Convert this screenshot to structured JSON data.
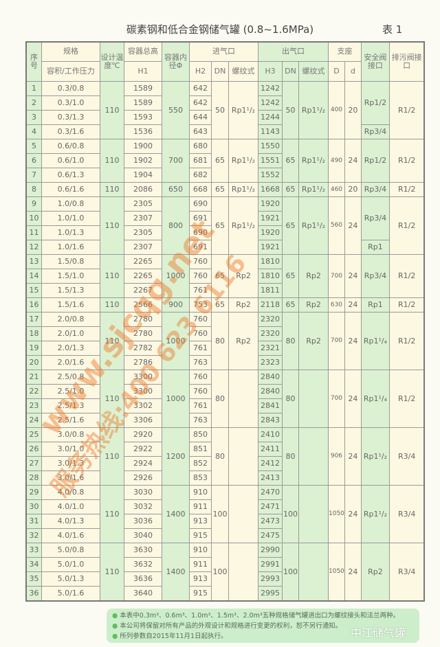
{
  "title": "碳素钢和低合金钢储气罐 (0.8~1.6MPa)",
  "table_number": "表  1",
  "headers": {
    "no": "序号",
    "spec": "规格",
    "spec_sub": "容积/工作压力",
    "temp": "设计温度℃",
    "h1_top": "容器总高",
    "h1": "H1",
    "dia": "容器内径Φ",
    "inlet": "进气口",
    "outlet": "出气口",
    "support": "支座",
    "safety": "安全阀接口",
    "drain": "排污阀接口",
    "h2": "H2",
    "dn": "DN",
    "thread": "螺纹式",
    "h3": "H3",
    "D": "D",
    "d": "d"
  },
  "groups": [
    {
      "temp": "110",
      "dia": "550",
      "dn_in": "50",
      "thread_in": "Rp1¹/₂",
      "dn_out": "50",
      "thread_out": "Rp1¹/₂",
      "D": "400",
      "d": "20",
      "drain": "R1/2",
      "safety": [
        {
          "label": "Rp1/2",
          "rows": 3
        },
        {
          "label": "Rp3/4",
          "rows": 1
        }
      ],
      "rows": [
        {
          "no": "1",
          "spec": "0.3/0.8",
          "h1": "1589",
          "h2": "642",
          "h3": "1242"
        },
        {
          "no": "2",
          "spec": "0.3/1.0",
          "h1": "1589",
          "h2": "642",
          "h3": "1242"
        },
        {
          "no": "3",
          "spec": "0.3/1.3",
          "h1": "1593",
          "h2": "644",
          "h3": "1244"
        },
        {
          "no": "4",
          "spec": "0.3/1.6",
          "h1": "1536",
          "h2": "643",
          "h3": "1143"
        }
      ]
    },
    {
      "temp": "110",
      "dia": "700",
      "dn_in": "65",
      "thread_in": "Rp1¹/₂",
      "dn_out": "65",
      "thread_out": "Rp1¹/₂",
      "D": "490",
      "d": "24",
      "drain": "R1/2",
      "safety": [
        {
          "label": "Rp1/2",
          "rows": 3
        }
      ],
      "rows": [
        {
          "no": "5",
          "spec": "0.6/0.8",
          "h1": "1900",
          "h2": "680",
          "h3": "1550"
        },
        {
          "no": "6",
          "spec": "0.6/1.0",
          "h1": "1902",
          "h2": "681",
          "h3": "1551"
        },
        {
          "no": "7",
          "spec": "0.6/1.3",
          "h1": "1904",
          "h2": "682",
          "h3": "1552"
        }
      ]
    },
    {
      "temp": "110",
      "dia": "650",
      "dn_in": "65",
      "thread_in": "Rp1¹/₂",
      "dn_out": "65",
      "thread_out": "Rp1¹/₂",
      "D": "460",
      "d": "20",
      "drain": "R1/2",
      "safety": [
        {
          "label": "Rp3/4",
          "rows": 1
        }
      ],
      "rows": [
        {
          "no": "8",
          "spec": "0.6/1.6",
          "h1": "2086",
          "h2": "668",
          "h3": "1668"
        }
      ]
    },
    {
      "temp": "110",
      "dia": "800",
      "dn_in": "65",
      "thread_in": "Rp1¹/₂",
      "dn_out": "65",
      "thread_out": "Rp1¹/₂",
      "D": "560",
      "d": "24",
      "drain": "R1/2",
      "safety": [
        {
          "label": "Rp3/4",
          "rows": 3
        },
        {
          "label": "Rp1",
          "rows": 1
        }
      ],
      "rows": [
        {
          "no": "9",
          "spec": "1.0/0.8",
          "h1": "2305",
          "h2": "690",
          "h3": "1920"
        },
        {
          "no": "10",
          "spec": "1.0/1.0",
          "h1": "2307",
          "h2": "691",
          "h3": "1921"
        },
        {
          "no": "11",
          "spec": "1.0/1.3",
          "h1": "2305",
          "h2": "690",
          "h3": "1920"
        },
        {
          "no": "12",
          "spec": "1.0/1.6",
          "h1": "2307",
          "h2": "691",
          "h3": "1921"
        }
      ]
    },
    {
      "temp": "110",
      "dia": "1000",
      "dn_in": "65",
      "thread_in": "Rp2",
      "dn_out": "65",
      "thread_out": "Rp2",
      "D": "700",
      "d": "24",
      "drain": "R1/2",
      "safety": [
        {
          "label": "Rp3/4",
          "rows": 3
        }
      ],
      "rows": [
        {
          "no": "13",
          "spec": "1.5/0.8",
          "h1": "2265",
          "h2": "760",
          "h3": "1810"
        },
        {
          "no": "14",
          "spec": "1.5/1.0",
          "h1": "2265",
          "h2": "760",
          "h3": "1810"
        },
        {
          "no": "15",
          "spec": "1.5/1.3",
          "h1": "2267",
          "h2": "761",
          "h3": "1811"
        }
      ]
    },
    {
      "temp": "110",
      "dia": "900",
      "dn_in": "65",
      "thread_in": "Rp2",
      "dn_out": "65",
      "thread_out": "Rp2",
      "D": "630",
      "d": "24",
      "drain": "R1/2",
      "safety": [
        {
          "label": "Rp1",
          "rows": 1
        }
      ],
      "rows": [
        {
          "no": "16",
          "spec": "1.5/1.6",
          "h1": "2566",
          "h2": "753",
          "h3": "2118"
        }
      ]
    },
    {
      "temp": "110",
      "dia": "1000",
      "dn_in": "80",
      "thread_in": "Rp2",
      "dn_out": "80",
      "thread_out": "Rp2",
      "D": "700",
      "d": "24",
      "drain": "R1/2",
      "safety": [
        {
          "label": "Rp1¹/₄",
          "rows": 4
        }
      ],
      "rows": [
        {
          "no": "17",
          "spec": "2.0/0.8",
          "h1": "2780",
          "h2": "760",
          "h3": "2320"
        },
        {
          "no": "18",
          "spec": "2.0/1.0",
          "h1": "2780",
          "h2": "760",
          "h3": "2320"
        },
        {
          "no": "19",
          "spec": "2.0/1.3",
          "h1": "2782",
          "h2": "761",
          "h3": "2321"
        },
        {
          "no": "20",
          "spec": "2.0/1.6",
          "h1": "2786",
          "h2": "763",
          "h3": "2323"
        }
      ]
    },
    {
      "temp": "110",
      "dia": "1000",
      "dn_in": "80",
      "thread_in": "",
      "dn_out": "80",
      "thread_out": "",
      "D": "700",
      "d": "24",
      "drain": "R1/2",
      "safety": [
        {
          "label": "Rp1¹/₄",
          "rows": 4
        }
      ],
      "rows": [
        {
          "no": "21",
          "spec": "2.5/0.8",
          "h1": "3300",
          "h2": "760",
          "h3": "2840"
        },
        {
          "no": "22",
          "spec": "2.5/1.0",
          "h1": "3300",
          "h2": "760",
          "h3": "2840"
        },
        {
          "no": "23",
          "spec": "2.5/1.3",
          "h1": "3302",
          "h2": "761",
          "h3": "2841"
        },
        {
          "no": "24",
          "spec": "2.5/1.6",
          "h1": "3306",
          "h2": "763",
          "h3": "2843"
        }
      ]
    },
    {
      "temp": "110",
      "dia": "1200",
      "dn_in": "80",
      "thread_in": "",
      "dn_out": "80",
      "thread_out": "",
      "D": "906",
      "d": "24",
      "drain": "R3/4",
      "safety": [
        {
          "label": "Rp1¹/₂",
          "rows": 4
        }
      ],
      "rows": [
        {
          "no": "25",
          "spec": "3.0/0.8",
          "h1": "2920",
          "h2": "850",
          "h3": "2410"
        },
        {
          "no": "26",
          "spec": "3.0/1.0",
          "h1": "2922",
          "h2": "851",
          "h3": "2411"
        },
        {
          "no": "27",
          "spec": "3.0/1.3",
          "h1": "2924",
          "h2": "852",
          "h3": "2412"
        },
        {
          "no": "28",
          "spec": "3.0/1.6",
          "h1": "2926",
          "h2": "853",
          "h3": "2413"
        }
      ]
    },
    {
      "temp": "110",
      "dia": "1400",
      "dn_in": "100",
      "thread_in": "",
      "dn_out": "100",
      "thread_out": "",
      "D": "1050",
      "d": "24",
      "drain": "R3/4",
      "safety": [
        {
          "label": "Rp1¹/₂",
          "rows": 4
        }
      ],
      "rows": [
        {
          "no": "29",
          "spec": "4.0/0.8",
          "h1": "3030",
          "h2": "910",
          "h3": "2470"
        },
        {
          "no": "30",
          "spec": "4.0/1.0",
          "h1": "3032",
          "h2": "911",
          "h3": "2471"
        },
        {
          "no": "31",
          "spec": "4.0/1.3",
          "h1": "3036",
          "h2": "913",
          "h3": "2473"
        },
        {
          "no": "32",
          "spec": "4.0/1.6",
          "h1": "3040",
          "h2": "915",
          "h3": "2475"
        }
      ]
    },
    {
      "temp": "110",
      "dia": "1400",
      "dn_in": "100",
      "thread_in": "",
      "dn_out": "100",
      "thread_out": "",
      "D": "1050",
      "d": "24",
      "drain": "R3/4",
      "safety": [
        {
          "label": "Rp2",
          "rows": 4
        }
      ],
      "rows": [
        {
          "no": "33",
          "spec": "5.0/0.8",
          "h1": "3630",
          "h2": "910",
          "h3": "2990"
        },
        {
          "no": "34",
          "spec": "5.0/1.0",
          "h1": "3632",
          "h2": "911",
          "h3": "2991"
        },
        {
          "no": "35",
          "spec": "5.0/1.3",
          "h1": "3636",
          "h2": "913",
          "h3": "2993"
        },
        {
          "no": "36",
          "spec": "5.0/1.6",
          "h1": "3640",
          "h2": "915",
          "h3": "2995"
        }
      ]
    }
  ],
  "notes": [
    "本表中0.3m³、0.6m³、1.0m³、1.5m³、2.0m³五种规格储气罐进出口为螺纹接头和法兰两种。",
    "本公司将保留对所有产品的外观设计和规格进行变更的权利，恕不另行通知。",
    "所列参数自2015年11月1日起执行。"
  ],
  "watermark": {
    "url": "www.sjcqg.net",
    "hotline": "服务热线:400 623 6116",
    "brand": "中江储气罐"
  },
  "colors": {
    "green": "#dcf1d2",
    "cream": "#fdf8e2",
    "watermark": "#eb7828"
  }
}
